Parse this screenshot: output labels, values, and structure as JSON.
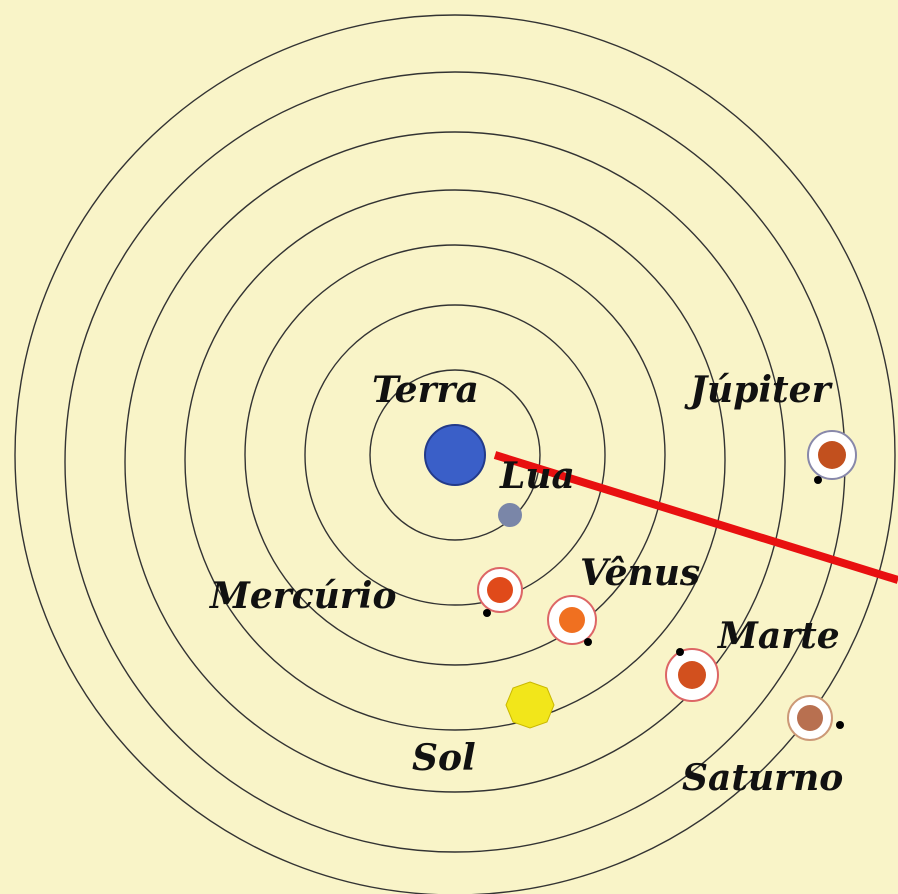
{
  "labels": {
    "earth": "Terra",
    "moon": "Lua",
    "mercury": "Mercúrio",
    "venus": "Vênus",
    "mars": "Marte",
    "sun": "Sol",
    "jupiter": "Júpiter",
    "saturn": "Saturno"
  }
}
